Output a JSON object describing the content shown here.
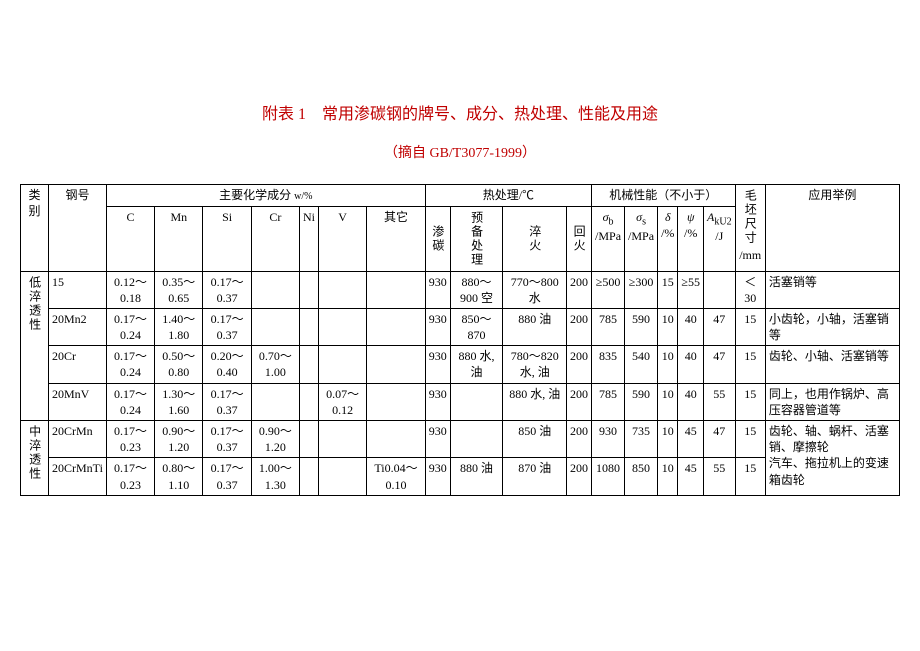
{
  "title": "附表 1　常用渗碳钢的牌号、成分、热处理、性能及用途",
  "subtitle": "（摘自 GB/T3077-1999）",
  "head": {
    "category": "类别",
    "grade": "钢号",
    "chem_group": "主要化学成分",
    "chem_unit": "w/%",
    "heat_group": "热处理/℃",
    "mech_group": "机械性能（不小于）",
    "blank_size": "毛坯尺寸",
    "blank_unit": "/mm",
    "application": "应用举例",
    "chem": {
      "C": "C",
      "Mn": "Mn",
      "Si": "Si",
      "Cr": "Cr",
      "Ni": "Ni",
      "V": "V",
      "Other": "其它"
    },
    "heat": {
      "carb": "渗碳",
      "pre": "预备处理",
      "quench": "淬火",
      "temper": "回火"
    },
    "mech": {
      "sb": "σ",
      "sb_sub": "b",
      "sb_unit": "/MPa",
      "ss": "σ",
      "ss_sub": "s",
      "ss_unit": "/MPa",
      "d": "δ",
      "d_unit": "/%",
      "psi": "ψ",
      "psi_unit": "/%",
      "ak": "A",
      "ak_sub": "kU2",
      "ak_unit": "/J"
    }
  },
  "cat1": "低淬透性",
  "cat2": "中淬透性",
  "rows": [
    {
      "grade": "15",
      "C": "0.12～0.18",
      "Mn": "0.35～0.65",
      "Si": "0.17～0.37",
      "Cr": "",
      "Ni": "",
      "V": "",
      "Other": "",
      "carb": "930",
      "pre": "880～900 空",
      "quench": "770～800 水",
      "temper": "200",
      "sb": "≥500",
      "ss": "≥300",
      "d": "15",
      "psi": "≥55",
      "ak": "",
      "blank": "＜30",
      "app": "活塞销等"
    },
    {
      "grade": "20Mn2",
      "C": "0.17～0.24",
      "Mn": "1.40～1.80",
      "Si": "0.17～0.37",
      "Cr": "",
      "Ni": "",
      "V": "",
      "Other": "",
      "carb": "930",
      "pre": "850～870",
      "quench": "880 油",
      "temper": "200",
      "sb": "785",
      "ss": "590",
      "d": "10",
      "psi": "40",
      "ak": "47",
      "blank": "15",
      "app": "小齿轮，小轴，活塞销等"
    },
    {
      "grade": "20Cr",
      "C": "0.17～0.24",
      "Mn": "0.50～0.80",
      "Si": "0.20～0.40",
      "Cr": "0.70～1.00",
      "Ni": "",
      "V": "",
      "Other": "",
      "carb": "930",
      "pre": "880 水, 油",
      "quench": "780～820 水, 油",
      "temper": "200",
      "sb": "835",
      "ss": "540",
      "d": "10",
      "psi": "40",
      "ak": "47",
      "blank": "15",
      "app": "齿轮、小轴、活塞销等"
    },
    {
      "grade": "20MnV",
      "C": "0.17～0.24",
      "Mn": "1.30～1.60",
      "Si": "0.17～0.37",
      "Cr": "",
      "Ni": "",
      "V": "0.07～0.12",
      "Other": "",
      "carb": "930",
      "pre": "",
      "quench": "880 水, 油",
      "temper": "200",
      "sb": "785",
      "ss": "590",
      "d": "10",
      "psi": "40",
      "ak": "55",
      "blank": "15",
      "app": "同上，也用作锅炉、高压容器管道等"
    },
    {
      "grade": "20CrMn",
      "C": "0.17～0.23",
      "Mn": "0.90～1.20",
      "Si": "0.17～0.37",
      "Cr": "0.90～1.20",
      "Ni": "",
      "V": "",
      "Other": "",
      "carb": "930",
      "pre": "",
      "quench": "850 油",
      "temper": "200",
      "sb": "930",
      "ss": "735",
      "d": "10",
      "psi": "45",
      "ak": "47",
      "blank": "15",
      "app": "齿轮、轴、蜗杆、活塞销、摩擦轮"
    },
    {
      "grade": "20CrMnTi",
      "C": "0.17～0.23",
      "Mn": "0.80～1.10",
      "Si": "0.17～0.37",
      "Cr": "1.00～1.30",
      "Ni": "",
      "V": "",
      "Other": "Ti0.04～0.10",
      "carb": "930",
      "pre": "880 油",
      "quench": "870 油",
      "temper": "200",
      "sb": "1080",
      "ss": "850",
      "d": "10",
      "psi": "45",
      "ak": "55",
      "blank": "15",
      "app": "汽车、拖拉机上的变速箱齿轮"
    }
  ]
}
